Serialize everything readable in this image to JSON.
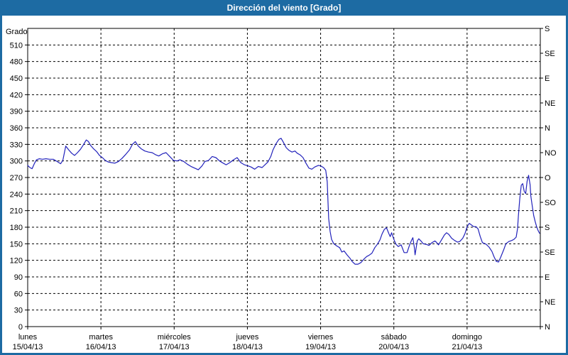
{
  "window": {
    "title": "Dirección del viento [Grado]",
    "titlebar_bg": "#1d6ba3",
    "titlebar_text_color": "#ffffff"
  },
  "chart_data": {
    "type": "line",
    "title": "Dirección del viento [Grado]",
    "grid": {
      "style": "dashed",
      "color": "#000000",
      "h_step_deg": 30,
      "v_step_days": 1
    },
    "y_left": {
      "label": "Grado",
      "min": 0,
      "max": 540,
      "tick_step": 30,
      "ticks": [
        0,
        30,
        60,
        90,
        120,
        150,
        180,
        210,
        240,
        270,
        300,
        330,
        360,
        390,
        420,
        450,
        480,
        510
      ]
    },
    "y_right": {
      "ticks": [
        {
          "value": 540,
          "label": "S"
        },
        {
          "value": 495,
          "label": "SE"
        },
        {
          "value": 450,
          "label": "E"
        },
        {
          "value": 405,
          "label": "NE"
        },
        {
          "value": 360,
          "label": "N"
        },
        {
          "value": 315,
          "label": "NO"
        },
        {
          "value": 270,
          "label": "O"
        },
        {
          "value": 225,
          "label": "SO"
        },
        {
          "value": 180,
          "label": "S"
        },
        {
          "value": 135,
          "label": "SE"
        },
        {
          "value": 90,
          "label": "E"
        },
        {
          "value": 45,
          "label": "NE"
        },
        {
          "value": 0,
          "label": "N"
        }
      ]
    },
    "x_axis": {
      "min_day": 0,
      "max_day": 7,
      "days": [
        {
          "name": "lunes",
          "date": "15/04/13",
          "position": 0
        },
        {
          "name": "martes",
          "date": "16/04/13",
          "position": 1
        },
        {
          "name": "miércoles",
          "date": "17/04/13",
          "position": 2
        },
        {
          "name": "jueves",
          "date": "18/04/13",
          "position": 3
        },
        {
          "name": "viernes",
          "date": "19/04/13",
          "position": 4
        },
        {
          "name": "sábado",
          "date": "20/04/13",
          "position": 5
        },
        {
          "name": "domingo",
          "date": "21/04/13",
          "position": 6
        }
      ]
    },
    "series": [
      {
        "name": "wind-direction-degrees",
        "color": "#2222bb",
        "points": [
          [
            0.0,
            292
          ],
          [
            0.03,
            288
          ],
          [
            0.06,
            286
          ],
          [
            0.09,
            295
          ],
          [
            0.12,
            302
          ],
          [
            0.16,
            304
          ],
          [
            0.2,
            303
          ],
          [
            0.25,
            304
          ],
          [
            0.3,
            303
          ],
          [
            0.35,
            303
          ],
          [
            0.4,
            299
          ],
          [
            0.45,
            295
          ],
          [
            0.48,
            301
          ],
          [
            0.52,
            327
          ],
          [
            0.56,
            320
          ],
          [
            0.6,
            314
          ],
          [
            0.64,
            310
          ],
          [
            0.68,
            315
          ],
          [
            0.72,
            321
          ],
          [
            0.76,
            329
          ],
          [
            0.8,
            338
          ],
          [
            0.83,
            335
          ],
          [
            0.86,
            328
          ],
          [
            0.9,
            322
          ],
          [
            0.94,
            317
          ],
          [
            0.98,
            310
          ],
          [
            1.02,
            306
          ],
          [
            1.06,
            301
          ],
          [
            1.1,
            298
          ],
          [
            1.14,
            297
          ],
          [
            1.19,
            296
          ],
          [
            1.24,
            299
          ],
          [
            1.29,
            305
          ],
          [
            1.34,
            312
          ],
          [
            1.39,
            320
          ],
          [
            1.43,
            330
          ],
          [
            1.47,
            335
          ],
          [
            1.51,
            327
          ],
          [
            1.55,
            322
          ],
          [
            1.6,
            318
          ],
          [
            1.65,
            316
          ],
          [
            1.7,
            315
          ],
          [
            1.75,
            311
          ],
          [
            1.79,
            309
          ],
          [
            1.84,
            313
          ],
          [
            1.89,
            315
          ],
          [
            1.94,
            308
          ],
          [
            1.99,
            301
          ],
          [
            2.04,
            300
          ],
          [
            2.08,
            302
          ],
          [
            2.13,
            299
          ],
          [
            2.18,
            294
          ],
          [
            2.23,
            290
          ],
          [
            2.28,
            287
          ],
          [
            2.33,
            284
          ],
          [
            2.38,
            291
          ],
          [
            2.42,
            299
          ],
          [
            2.47,
            301
          ],
          [
            2.52,
            308
          ],
          [
            2.57,
            306
          ],
          [
            2.62,
            300
          ],
          [
            2.67,
            296
          ],
          [
            2.71,
            293
          ],
          [
            2.76,
            297
          ],
          [
            2.81,
            302
          ],
          [
            2.86,
            306
          ],
          [
            2.91,
            297
          ],
          [
            2.96,
            293
          ],
          [
            3.01,
            291
          ],
          [
            3.05,
            289
          ],
          [
            3.1,
            285
          ],
          [
            3.15,
            290
          ],
          [
            3.2,
            288
          ],
          [
            3.24,
            293
          ],
          [
            3.28,
            298
          ],
          [
            3.32,
            308
          ],
          [
            3.35,
            320
          ],
          [
            3.39,
            331
          ],
          [
            3.43,
            339
          ],
          [
            3.46,
            341
          ],
          [
            3.49,
            334
          ],
          [
            3.53,
            324
          ],
          [
            3.57,
            319
          ],
          [
            3.61,
            316
          ],
          [
            3.65,
            318
          ],
          [
            3.68,
            314
          ],
          [
            3.72,
            311
          ],
          [
            3.76,
            306
          ],
          [
            3.8,
            296
          ],
          [
            3.84,
            287
          ],
          [
            3.88,
            285
          ],
          [
            3.92,
            289
          ],
          [
            3.97,
            292
          ],
          [
            4.0,
            291
          ],
          [
            4.04,
            288
          ],
          [
            4.07,
            283
          ],
          [
            4.09,
            262
          ],
          [
            4.1,
            228
          ],
          [
            4.11,
            196
          ],
          [
            4.13,
            172
          ],
          [
            4.15,
            158
          ],
          [
            4.18,
            150
          ],
          [
            4.22,
            146
          ],
          [
            4.26,
            143
          ],
          [
            4.29,
            135
          ],
          [
            4.32,
            137
          ],
          [
            4.36,
            130
          ],
          [
            4.4,
            124
          ],
          [
            4.43,
            118
          ],
          [
            4.47,
            113
          ],
          [
            4.51,
            113
          ],
          [
            4.55,
            116
          ],
          [
            4.59,
            122
          ],
          [
            4.63,
            127
          ],
          [
            4.66,
            129
          ],
          [
            4.7,
            133
          ],
          [
            4.74,
            143
          ],
          [
            4.78,
            150
          ],
          [
            4.81,
            157
          ],
          [
            4.84,
            168
          ],
          [
            4.87,
            176
          ],
          [
            4.9,
            179
          ],
          [
            4.93,
            169
          ],
          [
            4.95,
            163
          ],
          [
            4.97,
            170
          ],
          [
            5.0,
            158
          ],
          [
            5.03,
            149
          ],
          [
            5.06,
            145
          ],
          [
            5.1,
            148
          ],
          [
            5.14,
            134
          ],
          [
            5.18,
            134
          ],
          [
            5.21,
            146
          ],
          [
            5.24,
            156
          ],
          [
            5.26,
            161
          ],
          [
            5.28,
            143
          ],
          [
            5.29,
            130
          ],
          [
            5.32,
            155
          ],
          [
            5.34,
            159
          ],
          [
            5.37,
            155
          ],
          [
            5.4,
            150
          ],
          [
            5.44,
            149
          ],
          [
            5.48,
            147
          ],
          [
            5.52,
            152
          ],
          [
            5.56,
            155
          ],
          [
            5.58,
            153
          ],
          [
            5.61,
            148
          ],
          [
            5.65,
            157
          ],
          [
            5.69,
            166
          ],
          [
            5.72,
            170
          ],
          [
            5.75,
            167
          ],
          [
            5.79,
            160
          ],
          [
            5.83,
            156
          ],
          [
            5.87,
            153
          ],
          [
            5.9,
            154
          ],
          [
            5.94,
            160
          ],
          [
            5.97,
            168
          ],
          [
            6.0,
            181
          ],
          [
            6.03,
            187
          ],
          [
            6.06,
            184
          ],
          [
            6.09,
            181
          ],
          [
            6.12,
            181
          ],
          [
            6.15,
            177
          ],
          [
            6.18,
            163
          ],
          [
            6.21,
            152
          ],
          [
            6.23,
            151
          ],
          [
            6.26,
            149
          ],
          [
            6.3,
            144
          ],
          [
            6.34,
            136
          ],
          [
            6.37,
            126
          ],
          [
            6.4,
            118
          ],
          [
            6.43,
            117
          ],
          [
            6.46,
            126
          ],
          [
            6.5,
            139
          ],
          [
            6.53,
            150
          ],
          [
            6.57,
            154
          ],
          [
            6.61,
            156
          ],
          [
            6.64,
            158
          ],
          [
            6.67,
            162
          ],
          [
            6.69,
            178
          ],
          [
            6.7,
            200
          ],
          [
            6.72,
            232
          ],
          [
            6.74,
            256
          ],
          [
            6.76,
            259
          ],
          [
            6.78,
            245
          ],
          [
            6.8,
            241
          ],
          [
            6.82,
            263
          ],
          [
            6.84,
            274
          ],
          [
            6.86,
            257
          ],
          [
            6.87,
            237
          ],
          [
            6.89,
            218
          ],
          [
            6.91,
            201
          ],
          [
            6.93,
            190
          ],
          [
            6.95,
            181
          ],
          [
            6.97,
            174
          ],
          [
            6.99,
            169
          ]
        ]
      }
    ]
  }
}
